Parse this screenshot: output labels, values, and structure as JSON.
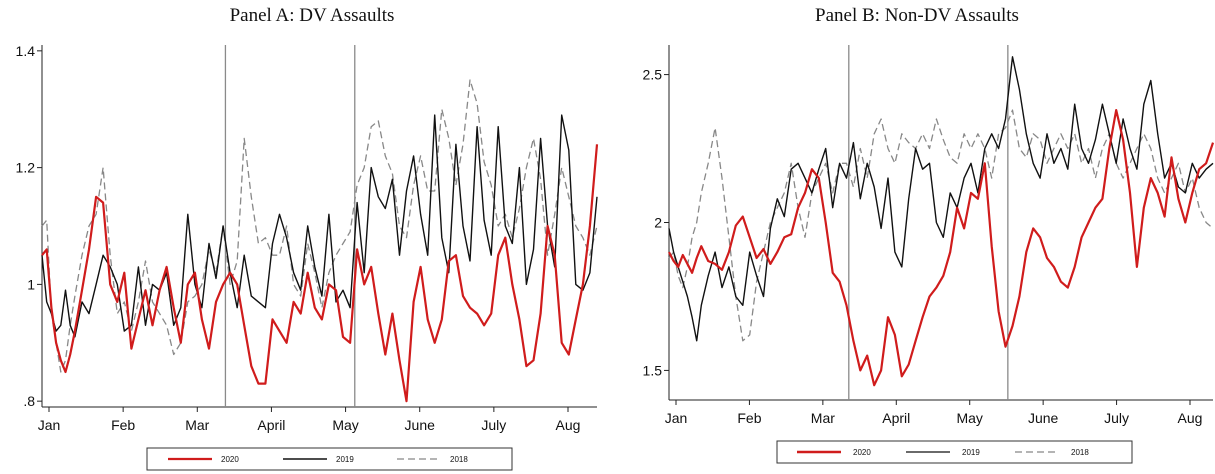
{
  "chart_data": [
    {
      "type": "line",
      "title": "Panel A: DV Assaults",
      "xlabel": "",
      "ylabel": "",
      "x_ticks": [
        "Jan",
        "Feb",
        "Mar",
        "April",
        "May",
        "June",
        "July",
        "Aug"
      ],
      "y_ticks": [
        ".8",
        "1",
        "1.2",
        "1.4"
      ],
      "ylim": [
        0.79,
        1.41
      ],
      "xlim": [
        1,
        237
      ],
      "vlines": [
        79,
        134
      ],
      "grid": false,
      "legend_position": "bottom",
      "series": [
        {
          "name": "2020",
          "color": "#d01c1c",
          "dash": "",
          "width": 2.2,
          "x": [
            1,
            3,
            5,
            7,
            9,
            11,
            13,
            15,
            18,
            21,
            24,
            27,
            30,
            33,
            36,
            39,
            42,
            45,
            48,
            51,
            54,
            57,
            60,
            63,
            66,
            69,
            72,
            75,
            78,
            81,
            84,
            87,
            90,
            93,
            96,
            99,
            102,
            105,
            108,
            111,
            114,
            117,
            120,
            123,
            126,
            129,
            132,
            135,
            138,
            141,
            144,
            147,
            150,
            153,
            156,
            159,
            162,
            165,
            168,
            171,
            174,
            177,
            180,
            183,
            186,
            189,
            192,
            195,
            198,
            201,
            204,
            207,
            210,
            213,
            216,
            219,
            222,
            225,
            228,
            231,
            234,
            237
          ],
          "values": [
            1.05,
            1.06,
            0.96,
            0.9,
            0.87,
            0.85,
            0.88,
            0.92,
            0.99,
            1.06,
            1.15,
            1.14,
            1.0,
            0.97,
            1.02,
            0.89,
            0.94,
            0.99,
            0.93,
            0.99,
            1.03,
            0.96,
            0.9,
            1.0,
            1.02,
            0.94,
            0.89,
            0.97,
            1.0,
            1.02,
            1.0,
            0.93,
            0.86,
            0.83,
            0.83,
            0.94,
            0.92,
            0.9,
            0.97,
            0.95,
            1.02,
            0.96,
            0.94,
            1.0,
            0.99,
            0.91,
            0.9,
            1.06,
            1.0,
            1.03,
            0.95,
            0.88,
            0.95,
            0.87,
            0.8,
            0.97,
            1.03,
            0.94,
            0.9,
            0.94,
            1.04,
            1.05,
            0.98,
            0.96,
            0.95,
            0.93,
            0.95,
            1.05,
            1.08,
            1.0,
            0.94,
            0.86,
            0.87,
            0.95,
            1.1,
            1.05,
            0.9,
            0.88,
            0.94,
            1.0,
            1.1,
            1.24
          ]
        },
        {
          "name": "2019",
          "color": "#111111",
          "dash": "",
          "width": 1.4,
          "x": [
            1,
            3,
            5,
            7,
            9,
            11,
            13,
            15,
            18,
            21,
            24,
            27,
            30,
            33,
            36,
            39,
            42,
            45,
            48,
            51,
            54,
            57,
            60,
            63,
            66,
            69,
            72,
            75,
            78,
            81,
            84,
            87,
            90,
            93,
            96,
            99,
            102,
            105,
            108,
            111,
            114,
            117,
            120,
            123,
            126,
            129,
            132,
            135,
            138,
            141,
            144,
            147,
            150,
            153,
            156,
            159,
            162,
            165,
            168,
            171,
            174,
            177,
            180,
            183,
            186,
            189,
            192,
            195,
            198,
            201,
            204,
            207,
            210,
            213,
            216,
            219,
            222,
            225,
            228,
            231,
            234,
            237
          ],
          "values": [
            1.05,
            0.97,
            0.95,
            0.92,
            0.93,
            0.99,
            0.93,
            0.91,
            0.97,
            0.95,
            1.0,
            1.05,
            1.03,
            1.0,
            0.92,
            0.93,
            1.03,
            0.93,
            1.0,
            0.99,
            1.02,
            0.93,
            0.96,
            1.12,
            1.0,
            0.96,
            1.07,
            1.01,
            1.1,
            1.02,
            0.96,
            1.05,
            0.98,
            0.97,
            0.96,
            1.07,
            1.12,
            1.08,
            1.02,
            0.99,
            1.1,
            1.03,
            0.98,
            1.12,
            0.97,
            0.99,
            0.96,
            1.14,
            1.02,
            1.2,
            1.15,
            1.13,
            1.18,
            1.05,
            1.16,
            1.22,
            1.12,
            1.05,
            1.29,
            1.08,
            1.02,
            1.24,
            1.1,
            1.04,
            1.27,
            1.11,
            1.05,
            1.27,
            1.1,
            1.07,
            1.2,
            1.0,
            1.06,
            1.25,
            1.1,
            1.03,
            1.29,
            1.23,
            1.0,
            0.99,
            1.02,
            1.15
          ]
        },
        {
          "name": "2018",
          "color": "#888888",
          "dash": "7,4",
          "width": 1.3,
          "x": [
            1,
            3,
            5,
            7,
            9,
            11,
            13,
            15,
            18,
            21,
            24,
            27,
            30,
            33,
            36,
            39,
            42,
            45,
            48,
            51,
            54,
            57,
            60,
            63,
            66,
            69,
            72,
            75,
            78,
            81,
            84,
            87,
            90,
            93,
            96,
            99,
            102,
            105,
            108,
            111,
            114,
            117,
            120,
            123,
            126,
            129,
            132,
            135,
            138,
            141,
            144,
            147,
            150,
            153,
            156,
            159,
            162,
            165,
            168,
            171,
            174,
            177,
            180,
            183,
            186,
            189,
            192,
            195,
            198,
            201,
            204,
            207,
            210,
            213,
            216,
            219,
            222,
            225,
            228,
            231,
            234,
            237
          ],
          "values": [
            1.1,
            1.11,
            0.95,
            0.9,
            0.85,
            0.87,
            0.93,
            0.98,
            1.05,
            1.1,
            1.12,
            1.2,
            1.05,
            0.95,
            0.97,
            0.92,
            0.97,
            1.04,
            0.97,
            0.95,
            0.93,
            0.88,
            0.9,
            0.97,
            0.98,
            1.0,
            1.06,
            1.02,
            1.1,
            1.0,
            1.04,
            1.25,
            1.15,
            1.07,
            1.08,
            1.05,
            1.05,
            1.1,
            1.0,
            0.98,
            1.07,
            1.02,
            0.96,
            1.02,
            1.05,
            1.07,
            1.09,
            1.17,
            1.2,
            1.27,
            1.28,
            1.22,
            1.19,
            1.1,
            1.08,
            1.17,
            1.22,
            1.16,
            1.16,
            1.3,
            1.25,
            1.17,
            1.24,
            1.35,
            1.31,
            1.21,
            1.17,
            1.1,
            1.12,
            1.08,
            1.13,
            1.2,
            1.25,
            1.18,
            1.05,
            1.12,
            1.2,
            1.15,
            1.1,
            1.08,
            1.05,
            1.1
          ]
        }
      ]
    },
    {
      "type": "line",
      "title": "Panel B: Non-DV Assaults",
      "xlabel": "",
      "ylabel": "",
      "x_ticks": [
        "Jan",
        "Feb",
        "Mar",
        "April",
        "May",
        "June",
        "July",
        "Aug"
      ],
      "y_ticks": [
        "1.5",
        "2",
        "2.5"
      ],
      "ylim": [
        1.4,
        2.6
      ],
      "xlim": [
        1,
        237
      ],
      "vlines": [
        79,
        148
      ],
      "grid": false,
      "legend_position": "bottom",
      "series": [
        {
          "name": "2020",
          "color": "#d01c1c",
          "dash": "",
          "width": 2.2,
          "x": [
            1,
            3,
            5,
            7,
            9,
            11,
            13,
            15,
            18,
            21,
            24,
            27,
            30,
            33,
            36,
            39,
            42,
            45,
            48,
            51,
            54,
            57,
            60,
            63,
            66,
            69,
            72,
            75,
            78,
            81,
            84,
            87,
            90,
            93,
            96,
            99,
            102,
            105,
            108,
            111,
            114,
            117,
            120,
            123,
            126,
            129,
            132,
            135,
            138,
            141,
            144,
            147,
            150,
            153,
            156,
            159,
            162,
            165,
            168,
            171,
            174,
            177,
            180,
            183,
            186,
            189,
            192,
            195,
            198,
            201,
            204,
            207,
            210,
            213,
            216,
            219,
            222,
            225,
            228,
            231,
            234,
            237
          ],
          "values": [
            1.9,
            1.87,
            1.85,
            1.89,
            1.86,
            1.83,
            1.88,
            1.92,
            1.87,
            1.86,
            1.84,
            1.9,
            1.99,
            2.02,
            1.95,
            1.88,
            1.91,
            1.86,
            1.9,
            1.95,
            1.96,
            2.05,
            2.1,
            2.18,
            2.15,
            2.0,
            1.83,
            1.8,
            1.72,
            1.6,
            1.5,
            1.55,
            1.45,
            1.5,
            1.68,
            1.62,
            1.48,
            1.52,
            1.6,
            1.68,
            1.75,
            1.78,
            1.82,
            1.9,
            2.05,
            1.98,
            2.1,
            2.08,
            2.2,
            1.92,
            1.7,
            1.58,
            1.65,
            1.75,
            1.9,
            1.98,
            1.95,
            1.88,
            1.85,
            1.8,
            1.78,
            1.85,
            1.95,
            2.0,
            2.05,
            2.08,
            2.25,
            2.38,
            2.28,
            2.1,
            1.85,
            2.05,
            2.15,
            2.1,
            2.02,
            2.22,
            2.08,
            2.0,
            2.1,
            2.18,
            2.2,
            2.27
          ]
        },
        {
          "name": "2019",
          "color": "#111111",
          "dash": "",
          "width": 1.4,
          "x": [
            1,
            3,
            5,
            7,
            9,
            11,
            13,
            15,
            18,
            21,
            24,
            27,
            30,
            33,
            36,
            39,
            42,
            45,
            48,
            51,
            54,
            57,
            60,
            63,
            66,
            69,
            72,
            75,
            78,
            81,
            84,
            87,
            90,
            93,
            96,
            99,
            102,
            105,
            108,
            111,
            114,
            117,
            120,
            123,
            126,
            129,
            132,
            135,
            138,
            141,
            144,
            147,
            150,
            153,
            156,
            159,
            162,
            165,
            168,
            171,
            174,
            177,
            180,
            183,
            186,
            189,
            192,
            195,
            198,
            201,
            204,
            207,
            210,
            213,
            216,
            219,
            222,
            225,
            228,
            231,
            234,
            237
          ],
          "values": [
            1.98,
            1.9,
            1.85,
            1.8,
            1.75,
            1.68,
            1.6,
            1.72,
            1.82,
            1.9,
            1.78,
            1.85,
            1.75,
            1.72,
            1.9,
            1.82,
            1.75,
            1.98,
            2.08,
            2.02,
            2.18,
            2.2,
            2.15,
            2.1,
            2.18,
            2.25,
            2.05,
            2.2,
            2.15,
            2.27,
            2.08,
            2.2,
            2.12,
            1.98,
            2.15,
            1.9,
            1.85,
            2.08,
            2.25,
            2.18,
            2.2,
            2.0,
            1.95,
            2.1,
            2.05,
            2.15,
            2.2,
            2.1,
            2.25,
            2.3,
            2.25,
            2.35,
            2.56,
            2.45,
            2.3,
            2.2,
            2.15,
            2.3,
            2.2,
            2.25,
            2.18,
            2.4,
            2.25,
            2.2,
            2.28,
            2.4,
            2.3,
            2.2,
            2.35,
            2.25,
            2.18,
            2.4,
            2.48,
            2.3,
            2.15,
            2.2,
            2.12,
            2.1,
            2.2,
            2.15,
            2.18,
            2.2
          ]
        },
        {
          "name": "2018",
          "color": "#888888",
          "dash": "7,4",
          "width": 1.3,
          "x": [
            1,
            3,
            5,
            7,
            9,
            11,
            13,
            15,
            18,
            21,
            24,
            27,
            30,
            33,
            36,
            39,
            42,
            45,
            48,
            51,
            54,
            57,
            60,
            63,
            66,
            69,
            72,
            75,
            78,
            81,
            84,
            87,
            90,
            93,
            96,
            99,
            102,
            105,
            108,
            111,
            114,
            117,
            120,
            123,
            126,
            129,
            132,
            135,
            138,
            141,
            144,
            147,
            150,
            153,
            156,
            159,
            162,
            165,
            168,
            171,
            174,
            177,
            180,
            183,
            186,
            189,
            192,
            195,
            198,
            201,
            204,
            207,
            210,
            213,
            216,
            219,
            222,
            225,
            228,
            231,
            234,
            237
          ],
          "values": [
            1.88,
            1.9,
            1.82,
            1.78,
            1.85,
            1.95,
            2.0,
            2.1,
            2.2,
            2.32,
            2.15,
            1.95,
            1.75,
            1.6,
            1.62,
            1.8,
            1.9,
            2.0,
            2.05,
            2.1,
            2.2,
            2.05,
            1.95,
            2.1,
            2.15,
            2.2,
            2.1,
            2.2,
            2.2,
            2.12,
            2.25,
            2.15,
            2.3,
            2.35,
            2.25,
            2.2,
            2.3,
            2.27,
            2.25,
            2.3,
            2.25,
            2.35,
            2.28,
            2.22,
            2.2,
            2.3,
            2.25,
            2.3,
            2.25,
            2.15,
            2.3,
            2.32,
            2.38,
            2.25,
            2.22,
            2.3,
            2.28,
            2.2,
            2.25,
            2.3,
            2.25,
            2.3,
            2.2,
            2.25,
            2.15,
            2.25,
            2.3,
            2.2,
            2.15,
            2.2,
            2.25,
            2.3,
            2.25,
            2.15,
            2.1,
            2.15,
            2.2,
            2.1,
            2.15,
            2.05,
            2.0,
            1.98
          ]
        }
      ]
    }
  ]
}
